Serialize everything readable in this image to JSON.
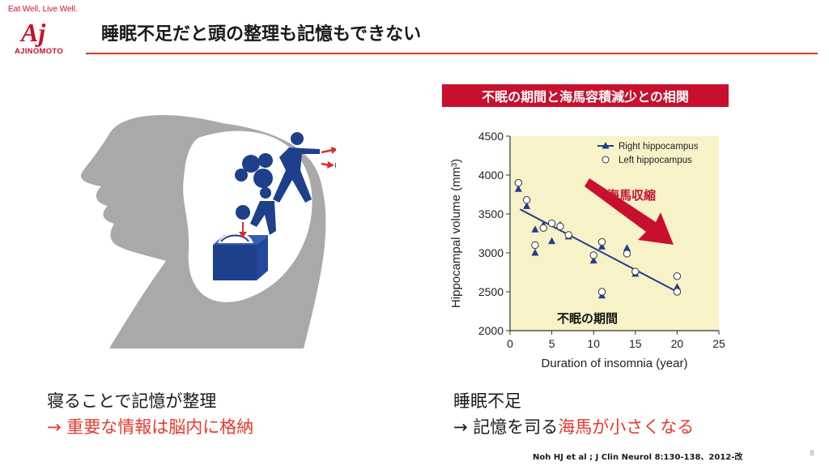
{
  "brand": {
    "tagline": "Eat Well, Live Well.",
    "mark": "Aj",
    "wordmark": "AJINOMOTO",
    "color": "#c8102e"
  },
  "slide": {
    "title": "睡眠不足だと頭の整理も記憶もできない",
    "page_number": "8"
  },
  "chart": {
    "banner": "不眠の期間と海馬容積減少との相関",
    "annotation_arrow": "海馬収縮",
    "annotation_period": "不眠の期間"
  },
  "chart_data": {
    "type": "scatter",
    "xlabel": "Duration of insomnia (year)",
    "ylabel": "Hippocampal volume (mm³)",
    "xlim": [
      0,
      25
    ],
    "ylim": [
      2000,
      4500
    ],
    "xticks": [
      0,
      5,
      10,
      15,
      20,
      25
    ],
    "yticks": [
      2000,
      2500,
      3000,
      3500,
      4000,
      4500
    ],
    "background": "#f8f2c8",
    "legend_position": "top-right",
    "series": [
      {
        "name": "Right hippocampus",
        "marker": "triangle",
        "color": "#1e3f8a",
        "points": [
          [
            1,
            3820
          ],
          [
            2,
            3600
          ],
          [
            3,
            3000
          ],
          [
            3,
            3300
          ],
          [
            4,
            3360
          ],
          [
            5,
            3150
          ],
          [
            6,
            3360
          ],
          [
            7,
            3210
          ],
          [
            10,
            2900
          ],
          [
            11,
            3080
          ],
          [
            11,
            2450
          ],
          [
            14,
            3060
          ],
          [
            15,
            2730
          ],
          [
            20,
            2560
          ]
        ]
      },
      {
        "name": "Left hippocampus",
        "marker": "circle",
        "color": "#1e3f8a",
        "points": [
          [
            1,
            3900
          ],
          [
            2,
            3680
          ],
          [
            3,
            3100
          ],
          [
            4,
            3320
          ],
          [
            5,
            3380
          ],
          [
            6,
            3340
          ],
          [
            7,
            3230
          ],
          [
            10,
            2970
          ],
          [
            11,
            3140
          ],
          [
            11,
            2500
          ],
          [
            14,
            2990
          ],
          [
            15,
            2760
          ],
          [
            20,
            2700
          ],
          [
            20,
            2500
          ]
        ]
      }
    ],
    "trendline": {
      "from": [
        1.2,
        3560
      ],
      "to": [
        20,
        2500
      ],
      "color": "#1e3f8a"
    }
  },
  "captions": {
    "left_line1": "寝ることで記憶が整理",
    "left_line2": "→ 重要な情報は脳内に格納",
    "right_line1": "睡眠不足",
    "right_line2_black": "→ 記憶を司る",
    "right_line2_red": "海馬が小さくなる"
  },
  "citation": "Noh HJ et al ; J Clin Neurol 8:130-138、2012-改",
  "colors": {
    "accent": "#e8382c",
    "navy": "#1e3f8a",
    "gray": "#9a9a9a"
  }
}
